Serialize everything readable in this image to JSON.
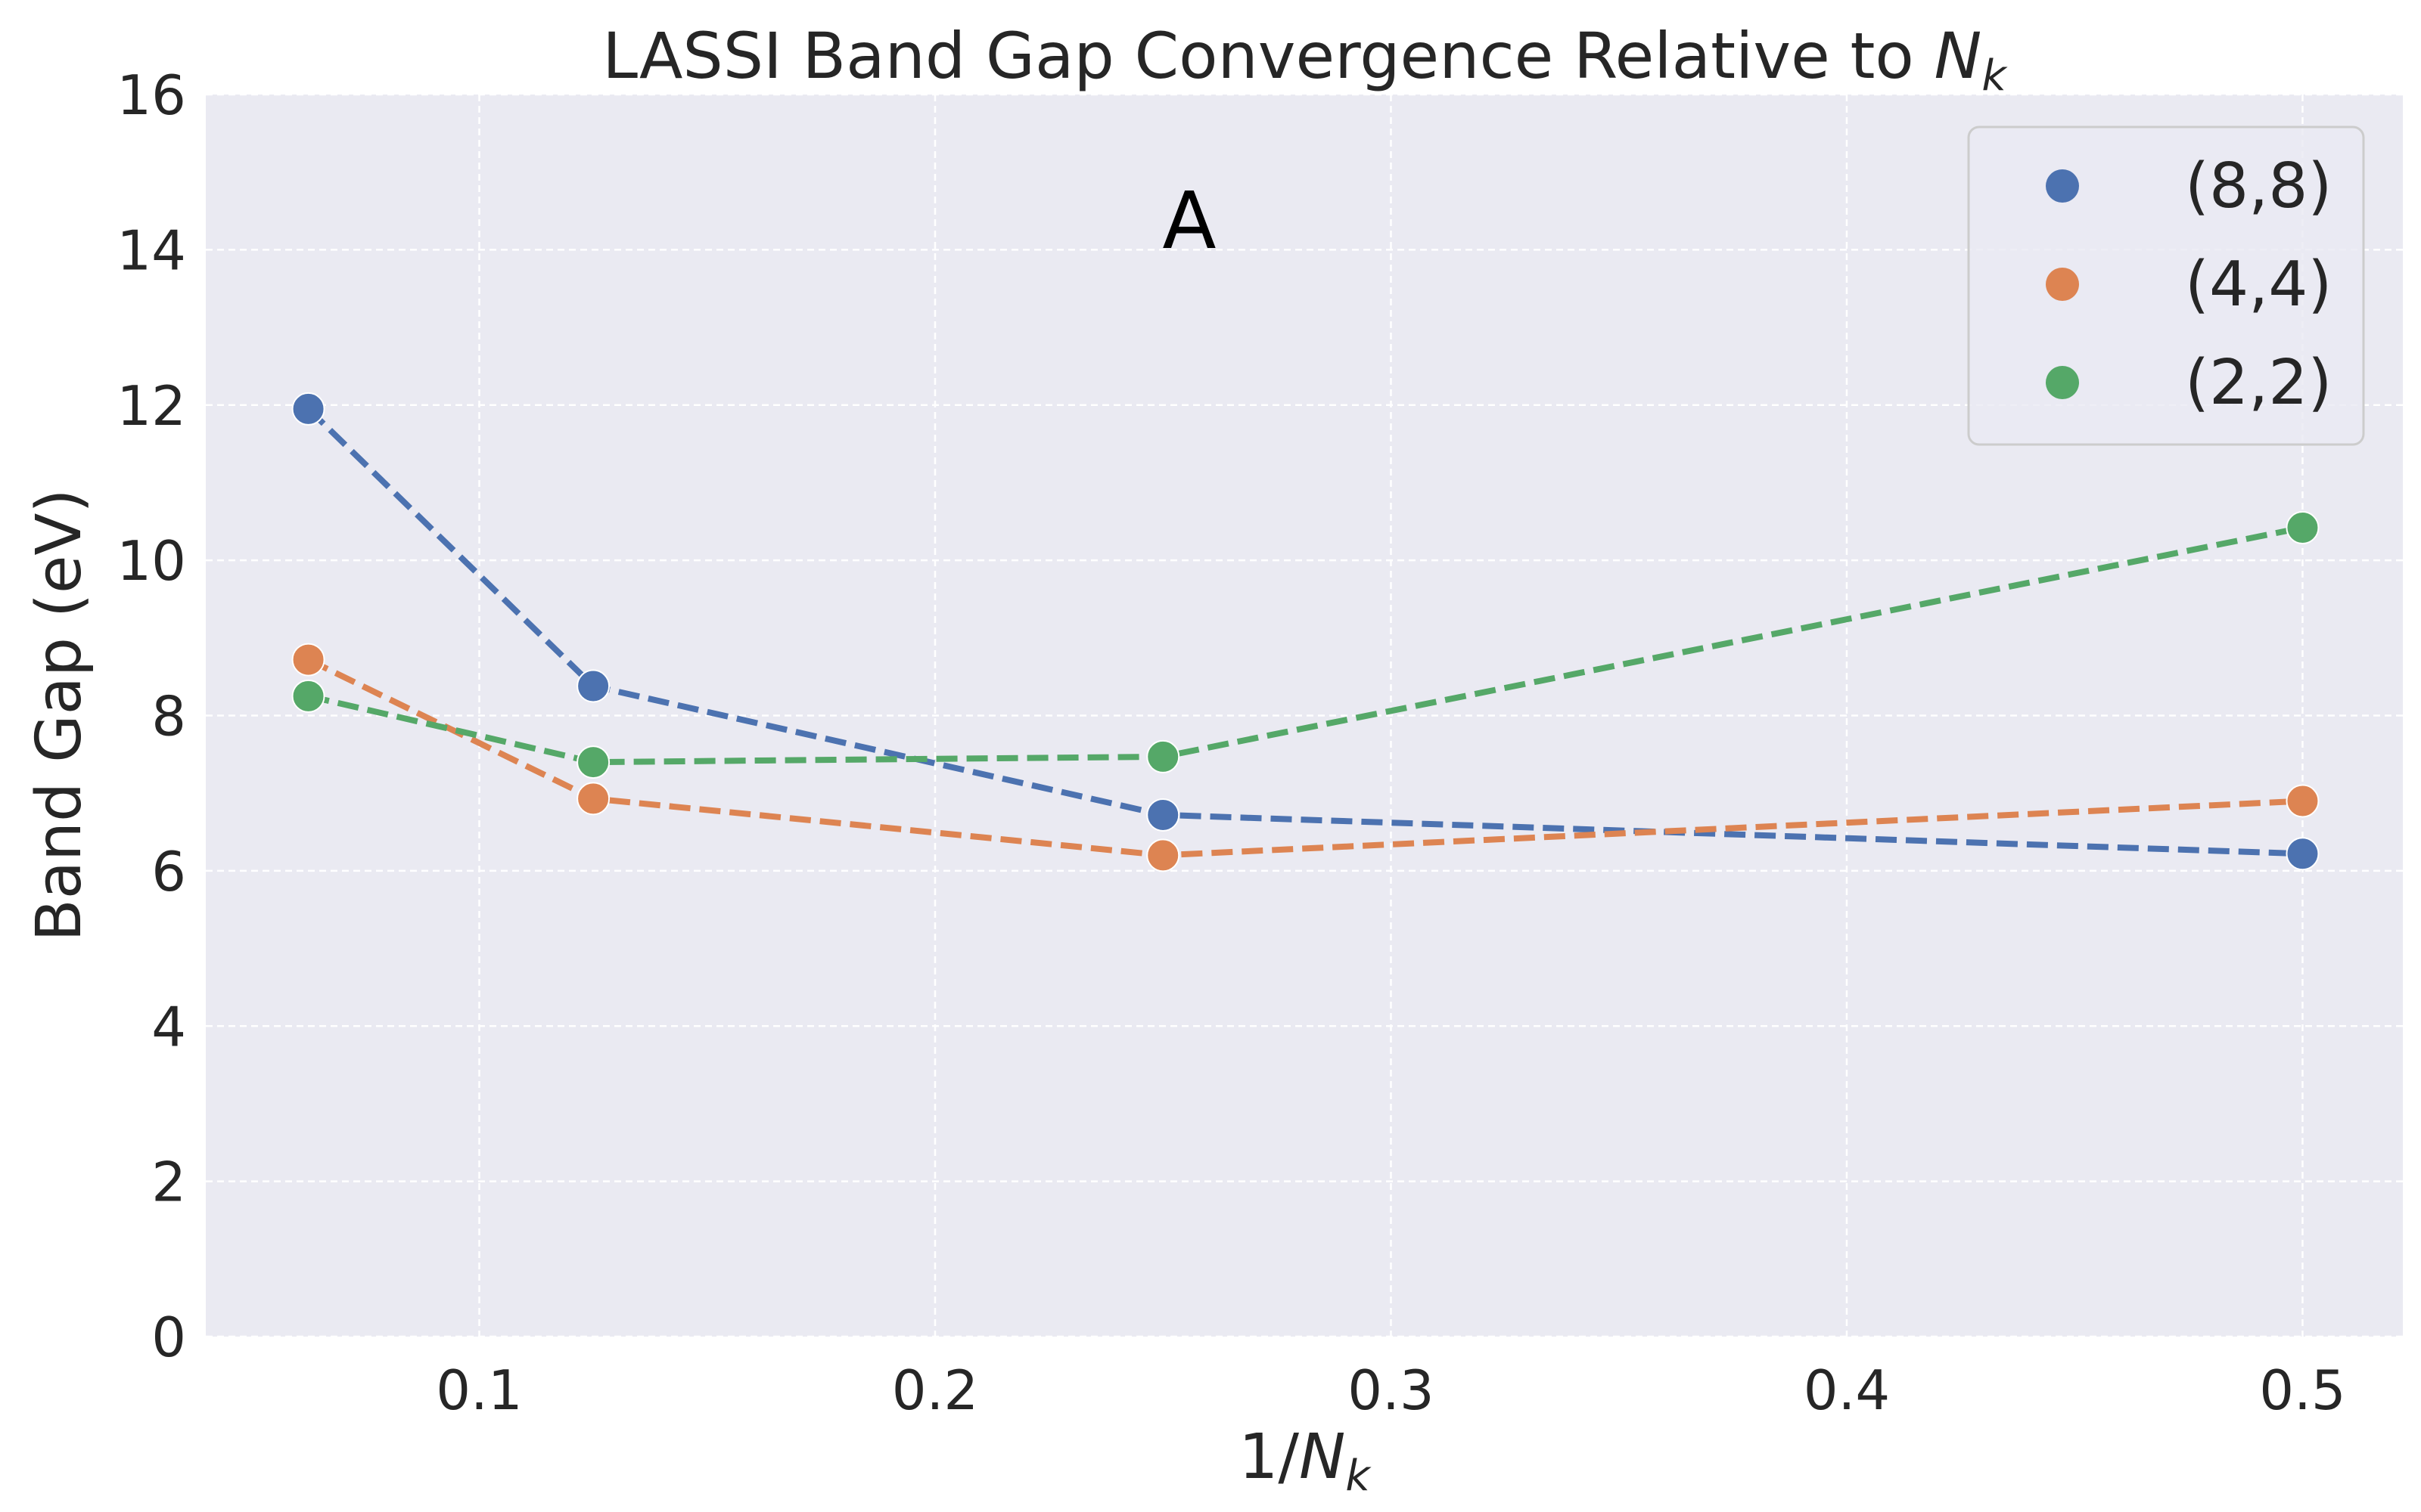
{
  "chart_data": {
    "type": "line",
    "title_prefix": "LASSI Band Gap Convergence Relative to ",
    "title_var": "N",
    "title_sub": "k",
    "xlabel_prefix": "1/",
    "xlabel_var": "N",
    "xlabel_sub": "k",
    "ylabel": "Band Gap (eV)",
    "annotation": "A",
    "xlim": [
      0.04,
      0.522
    ],
    "ylim": [
      0,
      16
    ],
    "x_ticks": [
      0.1,
      0.2,
      0.3,
      0.4,
      0.5
    ],
    "x_tick_labels": [
      "0.1",
      "0.2",
      "0.3",
      "0.4",
      "0.5"
    ],
    "y_ticks": [
      0,
      2,
      4,
      6,
      8,
      10,
      12,
      14,
      16
    ],
    "y_tick_labels": [
      "0",
      "2",
      "4",
      "6",
      "8",
      "10",
      "12",
      "14",
      "16"
    ],
    "grid": true,
    "legend_position": "top-right",
    "x": [
      0.0625,
      0.125,
      0.25,
      0.5
    ],
    "series": [
      {
        "name": "(8,8)",
        "color": "#4c72b0",
        "values": [
          11.95,
          8.38,
          6.72,
          6.22
        ]
      },
      {
        "name": "(4,4)",
        "color": "#dd8452",
        "values": [
          8.72,
          6.93,
          6.2,
          6.9
        ]
      },
      {
        "name": "(2,2)",
        "color": "#55a868",
        "values": [
          8.25,
          7.4,
          7.47,
          10.42
        ]
      }
    ]
  }
}
